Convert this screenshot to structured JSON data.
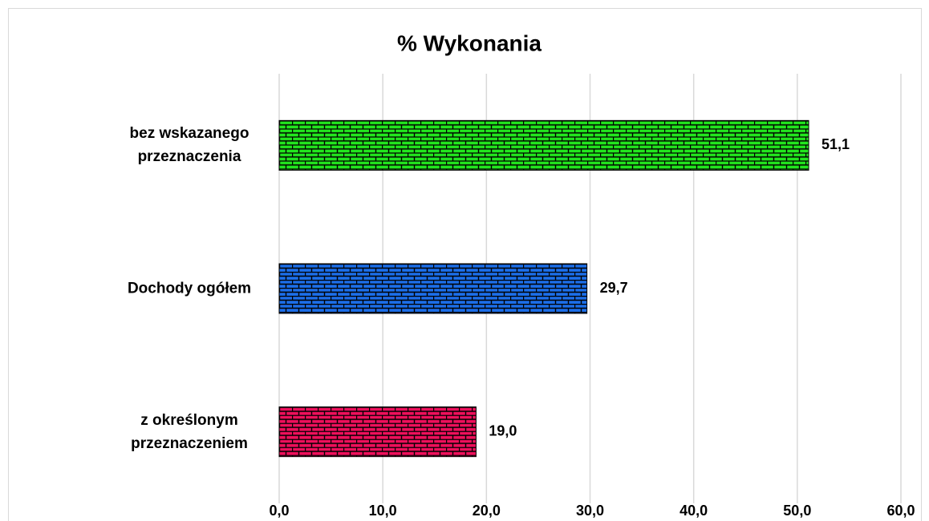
{
  "chart_data": {
    "type": "barh",
    "title": "% Wykonania",
    "categories": [
      "bez wskazanego przeznaczenia",
      "Dochody ogółem",
      "z określonym przeznaczeniem"
    ],
    "values": [
      51.1,
      29.7,
      19.0
    ],
    "value_labels": [
      "51,1",
      "29,7",
      "19,0"
    ],
    "colors": [
      "#22e61e",
      "#1c6ee8",
      "#f0105c"
    ],
    "xlim": [
      0,
      60
    ],
    "xticks": [
      {
        "value": 0,
        "label": "0,0"
      },
      {
        "value": 10,
        "label": "10,0"
      },
      {
        "value": 20,
        "label": "20,0"
      },
      {
        "value": 30,
        "label": "30,0"
      },
      {
        "value": 40,
        "label": "40,0"
      },
      {
        "value": 50,
        "label": "50,0"
      },
      {
        "value": 60,
        "label": "60,0"
      }
    ],
    "grid": true,
    "pattern": "bricks"
  }
}
